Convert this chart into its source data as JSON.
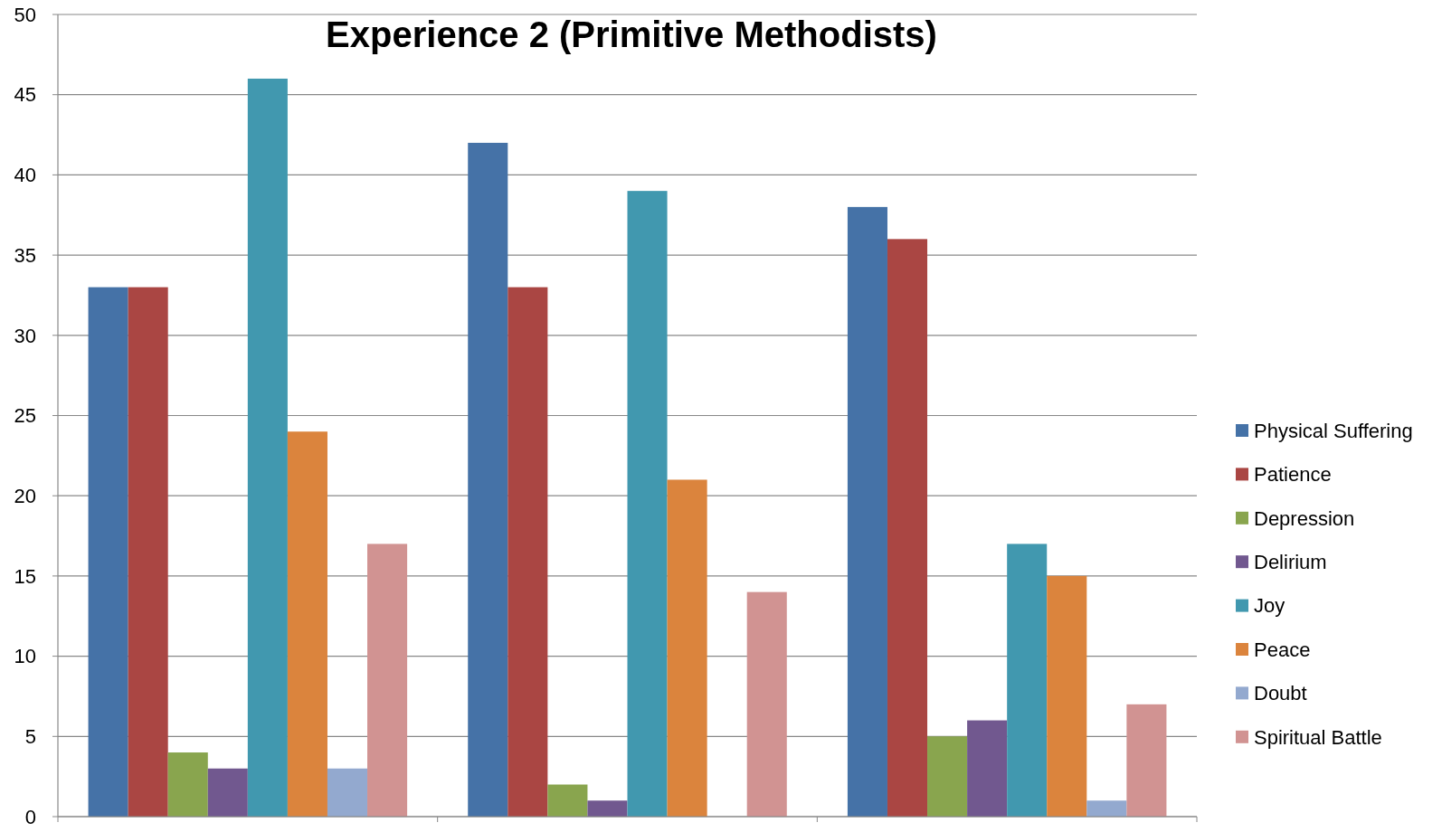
{
  "chart_data": {
    "type": "bar",
    "title": "Experience 2 (Primitive Methodists)",
    "categories": [
      null,
      null,
      null
    ],
    "series": [
      {
        "name": "Physical Suffering",
        "color": "#4572a7",
        "values": [
          33,
          42,
          38
        ]
      },
      {
        "name": "Patience",
        "color": "#aa4643",
        "values": [
          33,
          33,
          36
        ]
      },
      {
        "name": "Depression",
        "color": "#89a54e",
        "values": [
          4,
          2,
          5
        ]
      },
      {
        "name": "Delirium",
        "color": "#71588f",
        "values": [
          3,
          1,
          6
        ]
      },
      {
        "name": "Joy",
        "color": "#4198af",
        "values": [
          46,
          39,
          17
        ]
      },
      {
        "name": "Peace",
        "color": "#db843d",
        "values": [
          24,
          21,
          15
        ]
      },
      {
        "name": "Doubt",
        "color": "#93a9cf",
        "values": [
          3,
          0,
          1
        ]
      },
      {
        "name": "Spiritual Battle",
        "color": "#d19392",
        "values": [
          17,
          14,
          7
        ]
      }
    ],
    "ylim": [
      0,
      50
    ],
    "yticks": [
      0,
      5,
      10,
      15,
      20,
      25,
      30,
      35,
      40,
      45,
      50
    ],
    "grid": "y",
    "legend": "right"
  }
}
